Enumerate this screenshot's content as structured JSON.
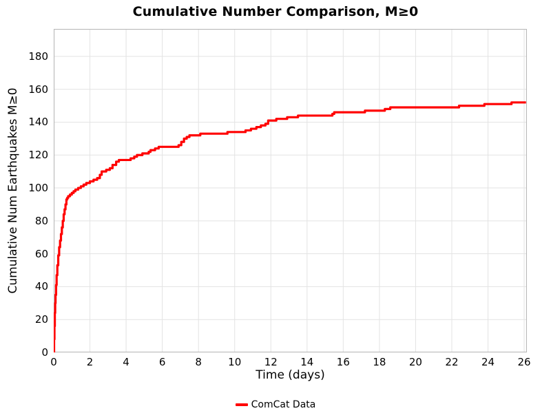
{
  "chart_data": {
    "type": "line",
    "line_style": "step-post",
    "title": "Cumulative Number Comparison, M≥0",
    "xlabel": "Time (days)",
    "ylabel": "Cumulative Num Earthquakes M≥0",
    "xlim": [
      0,
      26.15
    ],
    "ylim": [
      0,
      196.7
    ],
    "xticks": [
      0,
      2,
      4,
      6,
      8,
      10,
      12,
      14,
      16,
      18,
      20,
      22,
      24,
      26
    ],
    "yticks": [
      0,
      20,
      40,
      60,
      80,
      100,
      120,
      140,
      160,
      180
    ],
    "grid": true,
    "legend": {
      "position": "bottom-center",
      "entries": [
        {
          "label": "ComCat Data",
          "color": "#ff0000"
        }
      ]
    },
    "series": [
      {
        "name": "ComCat Data",
        "color": "#ff0000",
        "line_width": 3.2,
        "points": [
          [
            0.0,
            0
          ],
          [
            0.02,
            8
          ],
          [
            0.04,
            16
          ],
          [
            0.06,
            24
          ],
          [
            0.08,
            30
          ],
          [
            0.1,
            35
          ],
          [
            0.13,
            41
          ],
          [
            0.16,
            47
          ],
          [
            0.2,
            53
          ],
          [
            0.25,
            59
          ],
          [
            0.3,
            64
          ],
          [
            0.35,
            68
          ],
          [
            0.4,
            72
          ],
          [
            0.45,
            76
          ],
          [
            0.5,
            80
          ],
          [
            0.55,
            84
          ],
          [
            0.6,
            87
          ],
          [
            0.65,
            90
          ],
          [
            0.7,
            93
          ],
          [
            0.75,
            94
          ],
          [
            0.8,
            95
          ],
          [
            0.9,
            96
          ],
          [
            1.0,
            97
          ],
          [
            1.1,
            98
          ],
          [
            1.2,
            99
          ],
          [
            1.35,
            100
          ],
          [
            1.5,
            101
          ],
          [
            1.65,
            102
          ],
          [
            1.8,
            103
          ],
          [
            2.0,
            104
          ],
          [
            2.2,
            105
          ],
          [
            2.4,
            106
          ],
          [
            2.55,
            108
          ],
          [
            2.65,
            110
          ],
          [
            2.9,
            111
          ],
          [
            3.1,
            112
          ],
          [
            3.25,
            114
          ],
          [
            3.45,
            116
          ],
          [
            3.6,
            117
          ],
          [
            4.25,
            118
          ],
          [
            4.45,
            119
          ],
          [
            4.6,
            120
          ],
          [
            4.9,
            121
          ],
          [
            5.25,
            122
          ],
          [
            5.35,
            123
          ],
          [
            5.6,
            124
          ],
          [
            5.8,
            125
          ],
          [
            6.9,
            126
          ],
          [
            7.05,
            128
          ],
          [
            7.2,
            130
          ],
          [
            7.35,
            131
          ],
          [
            7.5,
            132
          ],
          [
            8.1,
            133
          ],
          [
            9.6,
            134
          ],
          [
            10.6,
            135
          ],
          [
            10.9,
            136
          ],
          [
            11.2,
            137
          ],
          [
            11.45,
            138
          ],
          [
            11.7,
            139
          ],
          [
            11.85,
            141
          ],
          [
            12.3,
            142
          ],
          [
            12.9,
            143
          ],
          [
            13.5,
            144
          ],
          [
            15.4,
            145
          ],
          [
            15.5,
            146
          ],
          [
            17.2,
            147
          ],
          [
            18.3,
            148
          ],
          [
            18.6,
            149
          ],
          [
            22.4,
            150
          ],
          [
            23.8,
            151
          ],
          [
            25.3,
            152
          ],
          [
            26.1,
            152
          ]
        ]
      }
    ]
  },
  "colors": {
    "background": "#ffffff",
    "grid": "#e3e3e3",
    "border": "#b8b8b8",
    "text": "#000000"
  }
}
